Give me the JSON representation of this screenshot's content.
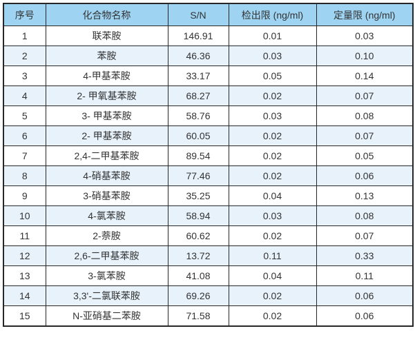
{
  "table": {
    "headers": [
      "序号",
      "化合物名称",
      "S/N",
      "检出限 (ng/ml)",
      "定量限 (ng/ml)"
    ],
    "rows": [
      {
        "no": "1",
        "name": "联苯胺",
        "sn": "146.91",
        "lod": "0.01",
        "loq": "0.03"
      },
      {
        "no": "2",
        "name": "苯胺",
        "sn": "46.36",
        "lod": "0.03",
        "loq": "0.10"
      },
      {
        "no": "3",
        "name": "4-甲基苯胺",
        "sn": "33.17",
        "lod": "0.05",
        "loq": "0.14"
      },
      {
        "no": "4",
        "name": "2- 甲氧基苯胺",
        "sn": "68.27",
        "lod": "0.02",
        "loq": "0.07"
      },
      {
        "no": "5",
        "name": "3- 甲基苯胺",
        "sn": "58.76",
        "lod": "0.03",
        "loq": "0.08"
      },
      {
        "no": "6",
        "name": "2- 甲基苯胺",
        "sn": "60.05",
        "lod": "0.02",
        "loq": "0.07"
      },
      {
        "no": "7",
        "name": "2,4-二甲基苯胺",
        "sn": "89.54",
        "lod": "0.02",
        "loq": "0.05"
      },
      {
        "no": "8",
        "name": "4-硝基苯胺",
        "sn": "77.46",
        "lod": "0.02",
        "loq": "0.06"
      },
      {
        "no": "9",
        "name": "3-硝基苯胺",
        "sn": "35.25",
        "lod": "0.04",
        "loq": "0.13"
      },
      {
        "no": "10",
        "name": "4-氯苯胺",
        "sn": "58.94",
        "lod": "0.03",
        "loq": "0.08"
      },
      {
        "no": "11",
        "name": "2-萘胺",
        "sn": "60.62",
        "lod": "0.02",
        "loq": "0.07"
      },
      {
        "no": "12",
        "name": "2,6-二甲基苯胺",
        "sn": "13.72",
        "lod": "0.11",
        "loq": "0.33"
      },
      {
        "no": "13",
        "name": "3-氯苯胺",
        "sn": "41.08",
        "lod": "0.04",
        "loq": "0.11"
      },
      {
        "no": "14",
        "name": "3,3'-二氯联苯胺",
        "sn": "69.26",
        "lod": "0.02",
        "loq": "0.06"
      },
      {
        "no": "15",
        "name": "N-亚硝基二苯胺",
        "sn": "71.58",
        "lod": "0.02",
        "loq": "0.06"
      }
    ]
  },
  "colors": {
    "header_bg": "#9ed3f2",
    "alt_row_bg": "#e7f2fb",
    "border": "#262626",
    "text": "#333333"
  }
}
